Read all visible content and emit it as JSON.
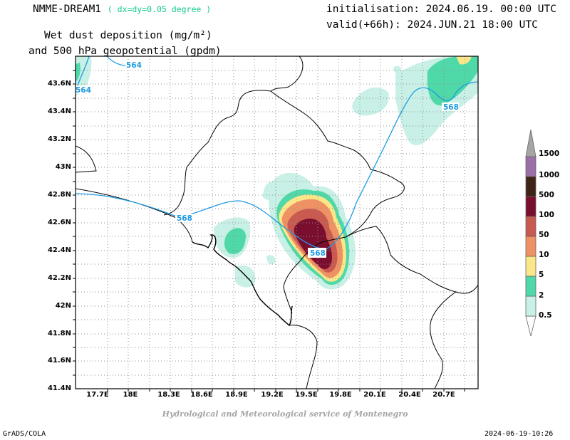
{
  "header": {
    "model_name": "NMME-DREAM1",
    "model_resolution": "( dx=dy=0.05 degree )",
    "title_line1": "Wet dust deposition (mg/m²)",
    "title_line2": "and 500 hPa geopotential (gpdm)",
    "initialisation": "initialisation: 2024.06.19. 00:00 UTC",
    "valid": "valid(+66h): 2024.JUN.21 18:00 UTC"
  },
  "map": {
    "lon_labels": [
      "17.7E",
      "18E",
      "18.3E",
      "18.6E",
      "18.9E",
      "19.2E",
      "19.5E",
      "19.8E",
      "20.1E",
      "20.4E",
      "20.7E"
    ],
    "lat_labels": [
      "43.6N",
      "43.4N",
      "43.2N",
      "43N",
      "42.8N",
      "42.6N",
      "42.4N",
      "42.2N",
      "42N",
      "41.8N",
      "41.6N",
      "41.4N"
    ],
    "contour_labels": [
      "564",
      "564",
      "568",
      "568",
      "568"
    ],
    "contour_color": "#1e9be3",
    "coast_color": "#000000"
  },
  "legend": {
    "levels": [
      "0.5",
      "2",
      "5",
      "10",
      "50",
      "100",
      "500",
      "1000",
      "1500"
    ],
    "colors": [
      "#c8f0e6",
      "#4fd9a8",
      "#fbe78a",
      "#ef9263",
      "#c85a4f",
      "#7a0e2e",
      "#3e2417",
      "#9b6fa8",
      "#a5a5a5"
    ]
  },
  "footer": {
    "credit": "Hydrological and Meteorological service of Montenegro",
    "software": "GrADS/COLA",
    "timestamp": "2024-06-19-10:26"
  }
}
